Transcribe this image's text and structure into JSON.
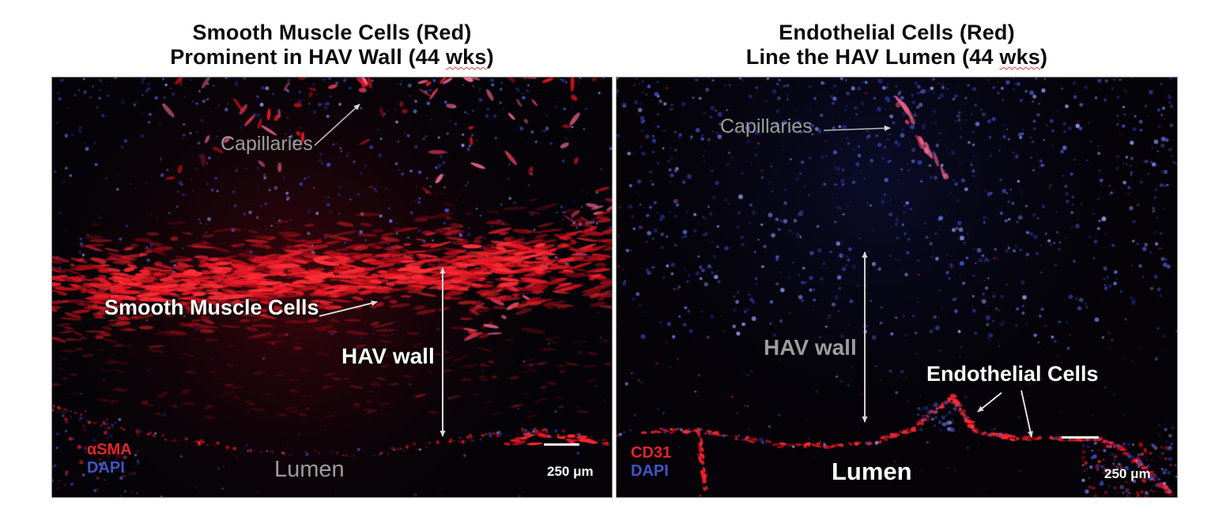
{
  "figure": {
    "background": "#ffffff",
    "colors": {
      "stain_red": "#e5242b",
      "dapi_blue": "#4353c8",
      "label_gray": "#9b9b9b",
      "label_white": "#ffffff",
      "title_black": "#0b0b0b",
      "arrow_gray": "#b9b9b9",
      "arrow_white": "#e8e8e8",
      "micrograph_background": "#050308"
    },
    "panels": [
      {
        "id": "left",
        "title_line1": "Smooth Muscle Cells (Red)",
        "title_line2_pre": "Prominent in HAV Wall (44 ",
        "title_line2_wavy": "wks",
        "title_line2_post": ")",
        "labels": {
          "capillaries": "Capillaries",
          "cells": "Smooth Muscle Cells",
          "hav_wall": "HAV wall",
          "lumen": "Lumen",
          "stain": "αSMA",
          "counterstain": "DAPI",
          "scale": "250 μm"
        }
      },
      {
        "id": "right",
        "title_line1": "Endothelial Cells (Red)",
        "title_line2_pre": "Line the HAV Lumen (44 ",
        "title_line2_wavy": "wks",
        "title_line2_post": ")",
        "labels": {
          "capillaries": "Capillaries",
          "cells": "Endothelial Cells",
          "hav_wall": "HAV wall",
          "lumen": "Lumen",
          "stain": "CD31",
          "counterstain": "DAPI",
          "scale": "250 μm"
        }
      }
    ]
  }
}
